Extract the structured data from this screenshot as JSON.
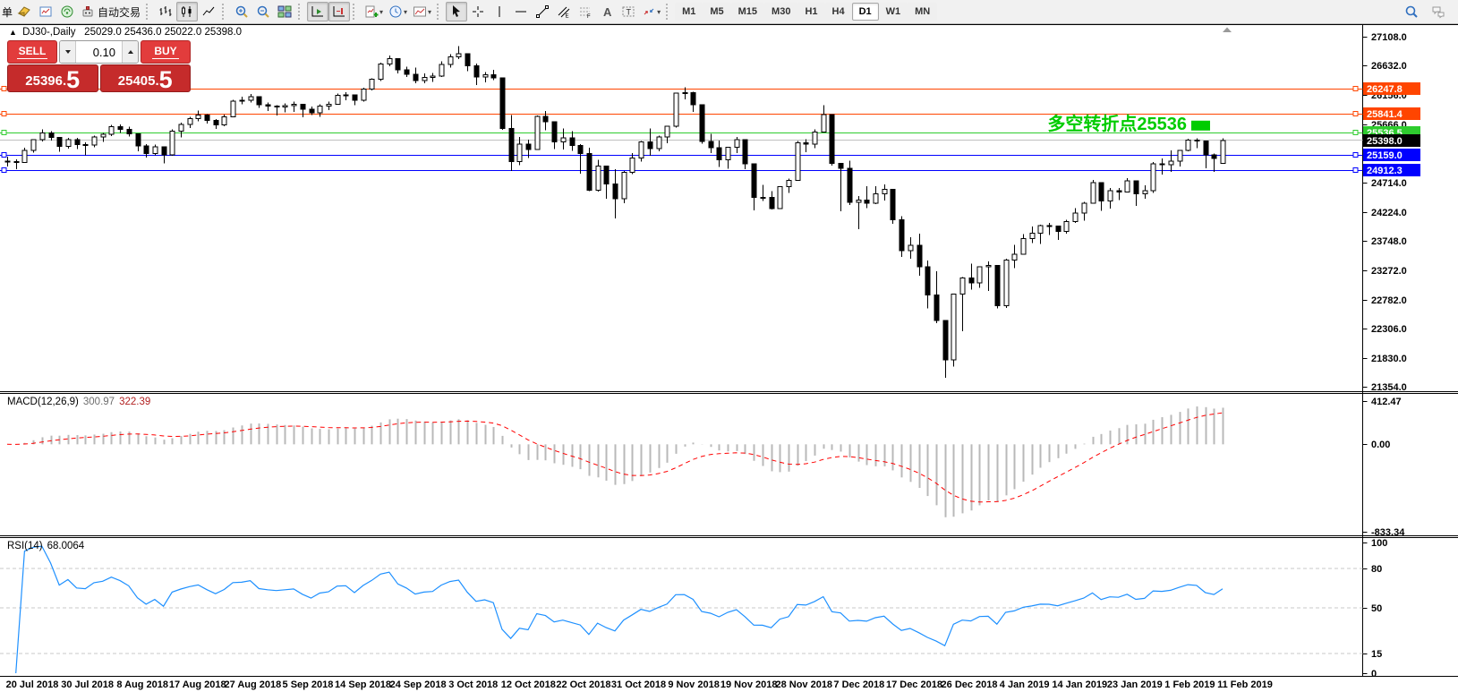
{
  "toolbar": {
    "cut_label": "单",
    "auto_trading_label": "自动交易",
    "groups": [
      {
        "items": [
          {
            "icon": "new-order-icon"
          },
          {
            "icon": "charts-window-icon"
          },
          {
            "icon": "signals-icon"
          },
          {
            "icon": "auto-trading-icon",
            "label": "自动交易"
          }
        ]
      },
      {
        "items": [
          {
            "icon": "bar-chart-icon"
          },
          {
            "icon": "candlestick-chart-icon",
            "pressed": true
          },
          {
            "icon": "line-chart-icon"
          }
        ]
      },
      {
        "items": [
          {
            "icon": "zoom-in-icon"
          },
          {
            "icon": "zoom-out-icon"
          },
          {
            "icon": "tile-windows-icon"
          }
        ]
      },
      {
        "items": [
          {
            "icon": "auto-scroll-icon",
            "pressed": true
          },
          {
            "icon": "chart-shift-icon",
            "pressed": true
          }
        ]
      },
      {
        "items": [
          {
            "icon": "indicators-icon",
            "dropdown": true
          },
          {
            "icon": "periods-icon",
            "dropdown": true
          },
          {
            "icon": "templates-icon",
            "dropdown": true
          }
        ]
      },
      {
        "items": [
          {
            "icon": "cursor-icon",
            "pressed": true
          },
          {
            "icon": "crosshair-icon"
          },
          {
            "icon": "vertical-line-icon"
          },
          {
            "icon": "horizontal-line-icon"
          },
          {
            "icon": "trendline-icon"
          },
          {
            "icon": "channel-icon"
          },
          {
            "icon": "fibonacci-icon"
          },
          {
            "icon": "text-icon"
          },
          {
            "icon": "text-label-icon"
          },
          {
            "icon": "arrows-icon",
            "dropdown": true
          }
        ]
      }
    ],
    "timeframes": [
      {
        "label": "M1"
      },
      {
        "label": "M5"
      },
      {
        "label": "M15"
      },
      {
        "label": "M30"
      },
      {
        "label": "H1"
      },
      {
        "label": "H4"
      },
      {
        "label": "D1",
        "active": true
      },
      {
        "label": "W1"
      },
      {
        "label": "MN"
      }
    ],
    "right_icons": [
      "search-icon",
      "chat-icon"
    ]
  },
  "chart_title": {
    "collapse_arrow": "▲",
    "symbol_period": "DJ30-,Daily",
    "ohlc_text": "25029.0 25436.0 25022.0 25398.0"
  },
  "trade_panel": {
    "sell_label": "SELL",
    "buy_label": "BUY",
    "volume": "0.10",
    "sell_price_main": "25396.",
    "sell_price_big": "5",
    "buy_price_main": "25405.",
    "buy_price_big": "5"
  },
  "indicators": {
    "macd": {
      "name": "MACD(12,26,9)",
      "value_main": "300.97",
      "value_signal": "322.39",
      "axis_labels": [
        412.47,
        0.0,
        -833.34
      ],
      "axis_texts": [
        "412.47",
        "0.00",
        "-833.34"
      ],
      "histogram_color": "#b9b9b9",
      "signal_color": "#ff0000"
    },
    "rsi": {
      "name": "RSI(14)",
      "value": "68.0064",
      "axis_texts": [
        "100",
        "80",
        "50",
        "15",
        "0"
      ],
      "axis_values": [
        100,
        80,
        50,
        15,
        0
      ],
      "levels": [
        80,
        50,
        15
      ],
      "line_color": "#1e90ff"
    }
  },
  "chart_data": {
    "type": "candlestick",
    "symbol": "DJ30-",
    "period": "Daily",
    "title": "DJ30-,Daily",
    "ohlc_display": [
      25029.0,
      25436.0,
      25022.0,
      25398.0
    ],
    "ylim": [
      21354.0,
      27108.0
    ],
    "y_ticks": [
      27108.0,
      26632.0,
      26156.0,
      25666.0,
      24714.0,
      24224.0,
      23748.0,
      23272.0,
      22782.0,
      22306.0,
      21830.0,
      21354.0
    ],
    "x_labels": [
      "20 Jul 2018",
      "30 Jul 2018",
      "8 Aug 2018",
      "17 Aug 2018",
      "27 Aug 2018",
      "5 Sep 2018",
      "14 Sep 2018",
      "24 Sep 2018",
      "3 Oct 2018",
      "12 Oct 2018",
      "22 Oct 2018",
      "31 Oct 2018",
      "9 Nov 2018",
      "19 Nov 2018",
      "28 Nov 2018",
      "7 Dec 2018",
      "17 Dec 2018",
      "26 Dec 2018",
      "4 Jan 2019",
      "14 Jan 2019",
      "23 Jan 2019",
      "1 Feb 2019",
      "11 Feb 2019"
    ],
    "levels": [
      {
        "price": 26247.8,
        "label": "26247.8",
        "color": "#ff4500"
      },
      {
        "price": 25841.4,
        "label": "25841.4",
        "color": "#ff4500"
      },
      {
        "price": 25536.5,
        "label": "25536.5",
        "color": "#2ecc2e"
      },
      {
        "price": 25415.0,
        "label": "",
        "color": "#c0c0c0"
      },
      {
        "price": 25159.0,
        "label": "25159.0",
        "color": "#0000ff"
      },
      {
        "price": 24912.3,
        "label": "24912.3",
        "color": "#0000ff"
      }
    ],
    "current_price": {
      "value": 25398.0,
      "label": "25398.0",
      "color": "#000000"
    },
    "annotation": {
      "text": "多空转折点25536",
      "color": "#00cc00",
      "price": 25536.5
    },
    "bull_color": "#ffffff",
    "bear_color": "#000000",
    "candles": [
      [
        25064,
        25135,
        24972,
        25058
      ],
      [
        25058,
        25095,
        24928,
        25044
      ],
      [
        25044,
        25282,
        25040,
        25241
      ],
      [
        25241,
        25425,
        25205,
        25414
      ],
      [
        25414,
        25587,
        25384,
        25527
      ],
      [
        25527,
        25557,
        25399,
        25451
      ],
      [
        25451,
        25461,
        25219,
        25307
      ],
      [
        25307,
        25447,
        25268,
        25415
      ],
      [
        25415,
        25445,
        25258,
        25334
      ],
      [
        25334,
        25371,
        25155,
        25326
      ],
      [
        25326,
        25480,
        25288,
        25463
      ],
      [
        25463,
        25523,
        25378,
        25502
      ],
      [
        25502,
        25657,
        25477,
        25629
      ],
      [
        25629,
        25663,
        25529,
        25584
      ],
      [
        25584,
        25632,
        25465,
        25509
      ],
      [
        25509,
        25511,
        25227,
        25313
      ],
      [
        25313,
        25342,
        25123,
        25188
      ],
      [
        25188,
        25336,
        25158,
        25300
      ],
      [
        25300,
        25301,
        25029,
        25162
      ],
      [
        25162,
        25587,
        25154,
        25559
      ],
      [
        25559,
        25692,
        25450,
        25669
      ],
      [
        25669,
        25790,
        25610,
        25759
      ],
      [
        25759,
        25891,
        25715,
        25822
      ],
      [
        25822,
        25837,
        25677,
        25734
      ],
      [
        25734,
        25754,
        25595,
        25657
      ],
      [
        25657,
        25826,
        25637,
        25790
      ],
      [
        25790,
        26072,
        25783,
        26050
      ],
      [
        26050,
        26122,
        25998,
        26064
      ],
      [
        26064,
        26167,
        26025,
        26124
      ],
      [
        26124,
        26126,
        25935,
        25987
      ],
      [
        25987,
        26030,
        25890,
        25965
      ],
      [
        25965,
        25982,
        25812,
        25952
      ],
      [
        25952,
        26012,
        25863,
        25975
      ],
      [
        25975,
        26041,
        25873,
        25996
      ],
      [
        25996,
        25998,
        25787,
        25917
      ],
      [
        25917,
        25963,
        25820,
        25857
      ],
      [
        25857,
        25995,
        25790,
        25971
      ],
      [
        25971,
        26042,
        25901,
        25999
      ],
      [
        25999,
        26176,
        25995,
        26146
      ],
      [
        26146,
        26197,
        26061,
        26155
      ],
      [
        26155,
        26157,
        25985,
        26062
      ],
      [
        26062,
        26272,
        26041,
        26246
      ],
      [
        26246,
        26422,
        26222,
        26406
      ],
      [
        26406,
        26679,
        26380,
        26657
      ],
      [
        26657,
        26797,
        26620,
        26744
      ],
      [
        26744,
        26746,
        26506,
        26562
      ],
      [
        26562,
        26616,
        26446,
        26492
      ],
      [
        26492,
        26598,
        26345,
        26385
      ],
      [
        26385,
        26507,
        26345,
        26440
      ],
      [
        26440,
        26509,
        26362,
        26458
      ],
      [
        26458,
        26702,
        26444,
        26651
      ],
      [
        26651,
        26824,
        26597,
        26774
      ],
      [
        26774,
        26952,
        26740,
        26828
      ],
      [
        26828,
        26836,
        26540,
        26627
      ],
      [
        26627,
        26669,
        26314,
        26447
      ],
      [
        26447,
        26529,
        26355,
        26486
      ],
      [
        26486,
        26560,
        26391,
        26430
      ],
      [
        26430,
        26436,
        25574,
        25599
      ],
      [
        25599,
        25818,
        24900,
        25053
      ],
      [
        25053,
        25461,
        24997,
        25340
      ],
      [
        25340,
        25412,
        25117,
        25251
      ],
      [
        25251,
        25815,
        25249,
        25798
      ],
      [
        25798,
        25890,
        25573,
        25707
      ],
      [
        25707,
        25714,
        25260,
        25379
      ],
      [
        25379,
        25598,
        25255,
        25444
      ],
      [
        25444,
        25552,
        25235,
        25317
      ],
      [
        25317,
        25345,
        24859,
        25191
      ],
      [
        25191,
        25282,
        24567,
        24583
      ],
      [
        24583,
        25088,
        24563,
        24985
      ],
      [
        24985,
        24990,
        24445,
        24688
      ],
      [
        24688,
        24931,
        24122,
        24443
      ],
      [
        24443,
        24899,
        24370,
        24875
      ],
      [
        24875,
        25192,
        24847,
        25116
      ],
      [
        25116,
        25391,
        25058,
        25381
      ],
      [
        25381,
        25602,
        25153,
        25271
      ],
      [
        25271,
        25480,
        25222,
        25462
      ],
      [
        25462,
        25647,
        25358,
        25635
      ],
      [
        25635,
        26186,
        25611,
        26180
      ],
      [
        26180,
        26277,
        26081,
        26191
      ],
      [
        26191,
        26203,
        25875,
        25989
      ],
      [
        25989,
        25990,
        25347,
        25387
      ],
      [
        25387,
        25511,
        25193,
        25286
      ],
      [
        25286,
        25399,
        24968,
        25081
      ],
      [
        25081,
        25298,
        24935,
        25289
      ],
      [
        25289,
        25457,
        25198,
        25413
      ],
      [
        25413,
        25418,
        24931,
        25017
      ],
      [
        25017,
        25019,
        24252,
        24466
      ],
      [
        24466,
        24669,
        24411,
        24465
      ],
      [
        24465,
        24566,
        24268,
        24286
      ],
      [
        24286,
        24654,
        24280,
        24640
      ],
      [
        24640,
        24772,
        24543,
        24748
      ],
      [
        24748,
        25390,
        24740,
        25366
      ],
      [
        25366,
        25425,
        25212,
        25339
      ],
      [
        25339,
        25587,
        25277,
        25538
      ],
      [
        25538,
        25980,
        25530,
        25826
      ],
      [
        25826,
        25830,
        24992,
        25027
      ],
      [
        25027,
        25028,
        24242,
        24948
      ],
      [
        24948,
        25073,
        24339,
        24389
      ],
      [
        24389,
        24486,
        23942,
        24423
      ],
      [
        24423,
        24650,
        24290,
        24370
      ],
      [
        24370,
        24654,
        24355,
        24527
      ],
      [
        24527,
        24680,
        24418,
        24597
      ],
      [
        24597,
        24598,
        24034,
        24101
      ],
      [
        24101,
        24160,
        23485,
        23593
      ],
      [
        23593,
        23811,
        23460,
        23676
      ],
      [
        23676,
        23871,
        23176,
        23324
      ],
      [
        23324,
        23429,
        22644,
        22860
      ],
      [
        22860,
        23255,
        22396,
        22445
      ],
      [
        22445,
        22447,
        21500,
        21792
      ],
      [
        21792,
        22887,
        21682,
        22878
      ],
      [
        22878,
        23157,
        22267,
        23139
      ],
      [
        23139,
        23381,
        22954,
        23062
      ],
      [
        23062,
        23334,
        22981,
        23328
      ],
      [
        23328,
        23413,
        22928,
        23346
      ],
      [
        23346,
        23349,
        22638,
        22686
      ],
      [
        22686,
        23458,
        22649,
        23433
      ],
      [
        23433,
        23688,
        23301,
        23531
      ],
      [
        23531,
        23864,
        23525,
        23787
      ],
      [
        23787,
        23985,
        23717,
        23879
      ],
      [
        23879,
        24014,
        23703,
        24002
      ],
      [
        24002,
        24046,
        23852,
        23996
      ],
      [
        23996,
        23997,
        23765,
        23910
      ],
      [
        23910,
        24098,
        23869,
        24066
      ],
      [
        24066,
        24292,
        24048,
        24207
      ],
      [
        24207,
        24396,
        24083,
        24370
      ],
      [
        24370,
        24750,
        24365,
        24706
      ],
      [
        24706,
        24708,
        24244,
        24404
      ],
      [
        24404,
        24618,
        24284,
        24576
      ],
      [
        24576,
        24622,
        24422,
        24553
      ],
      [
        24553,
        24782,
        24550,
        24737
      ],
      [
        24737,
        24738,
        24323,
        24528
      ],
      [
        24528,
        24667,
        24448,
        24580
      ],
      [
        24580,
        25048,
        24538,
        25015
      ],
      [
        25015,
        25109,
        24839,
        25000
      ],
      [
        25000,
        25240,
        24883,
        25064
      ],
      [
        25064,
        25249,
        24972,
        25239
      ],
      [
        25239,
        25430,
        25221,
        25411
      ],
      [
        25411,
        25440,
        25273,
        25390
      ],
      [
        25390,
        25394,
        24942,
        25169
      ],
      [
        25169,
        25186,
        24884,
        25106
      ],
      [
        25029,
        25436,
        25022,
        25398
      ]
    ],
    "sub_charts": [
      {
        "type": "bar+line",
        "name": "MACD",
        "params": [
          12,
          26,
          9
        ],
        "ylim": [
          -833.34,
          412.47
        ],
        "derived_from": "candle closes"
      },
      {
        "type": "line",
        "name": "RSI",
        "period": 14,
        "ylim": [
          0,
          100
        ],
        "derived_from": "candle closes"
      }
    ]
  }
}
